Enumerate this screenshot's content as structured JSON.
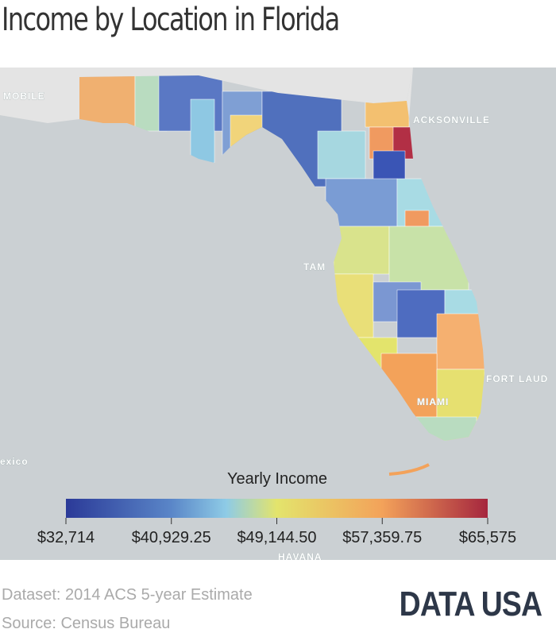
{
  "title": "Income by Location in Florida",
  "places": [
    "MOBILE",
    "ACKSONVILLE",
    "TAM",
    "FORT LAUD",
    "MIAMI",
    "exico",
    "HAVANA"
  ],
  "legend": {
    "title": "Yearly Income",
    "lim": [
      32714,
      65575
    ],
    "ticks": [
      {
        "value": 32714,
        "label": "$32,714"
      },
      {
        "value": 40929.25,
        "label": "$40,929.25"
      },
      {
        "value": 49144.5,
        "label": "$49,144.50"
      },
      {
        "value": 57359.75,
        "label": "$57,359.75"
      },
      {
        "value": 65575,
        "label": "$65,575"
      }
    ]
  },
  "footer": {
    "dataset": "Dataset: 2014 ACS 5-year Estimate",
    "source": "Source: Census Bureau",
    "logo": "DATA USA"
  }
}
